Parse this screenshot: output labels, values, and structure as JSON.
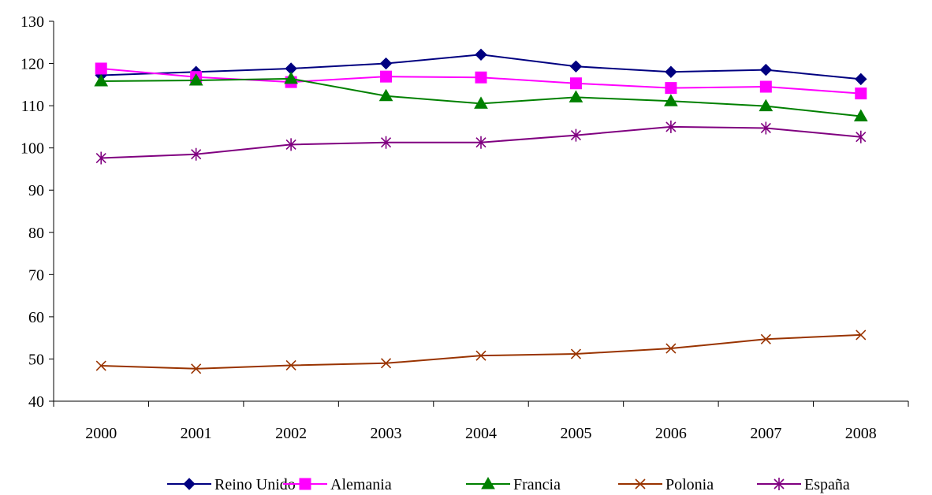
{
  "chart_data": {
    "type": "line",
    "title": "",
    "xlabel": "",
    "ylabel": "",
    "categories": [
      "2000",
      "2001",
      "2002",
      "2003",
      "2004",
      "2005",
      "2006",
      "2007",
      "2008"
    ],
    "ylim": [
      40,
      130
    ],
    "yticks": [
      "40",
      "50",
      "60",
      "70",
      "80",
      "90",
      "100",
      "110",
      "120",
      "130"
    ],
    "grid": false,
    "legend_position": "bottom",
    "series": [
      {
        "name": "Reino Unido",
        "color": "#000080",
        "marker": "diamond",
        "values": [
          117.2,
          118.0,
          118.8,
          120.0,
          122.1,
          119.3,
          118.0,
          118.5,
          116.3
        ]
      },
      {
        "name": "Alemania",
        "color": "#FF00FF",
        "marker": "square",
        "values": [
          118.8,
          116.8,
          115.6,
          116.9,
          116.7,
          115.3,
          114.2,
          114.5,
          112.9
        ]
      },
      {
        "name": "Francia",
        "color": "#008000",
        "marker": "triangle",
        "values": [
          115.8,
          116.0,
          116.4,
          112.3,
          110.5,
          112.0,
          111.1,
          109.9,
          107.5
        ]
      },
      {
        "name": "Polonia",
        "color": "#993300",
        "marker": "x",
        "values": [
          48.4,
          47.7,
          48.5,
          49.0,
          50.8,
          51.2,
          52.5,
          54.7,
          55.7
        ]
      },
      {
        "name": "España",
        "color": "#800080",
        "marker": "star",
        "values": [
          97.6,
          98.5,
          100.8,
          101.3,
          101.3,
          103.0,
          105.0,
          104.7,
          102.6
        ]
      }
    ]
  }
}
